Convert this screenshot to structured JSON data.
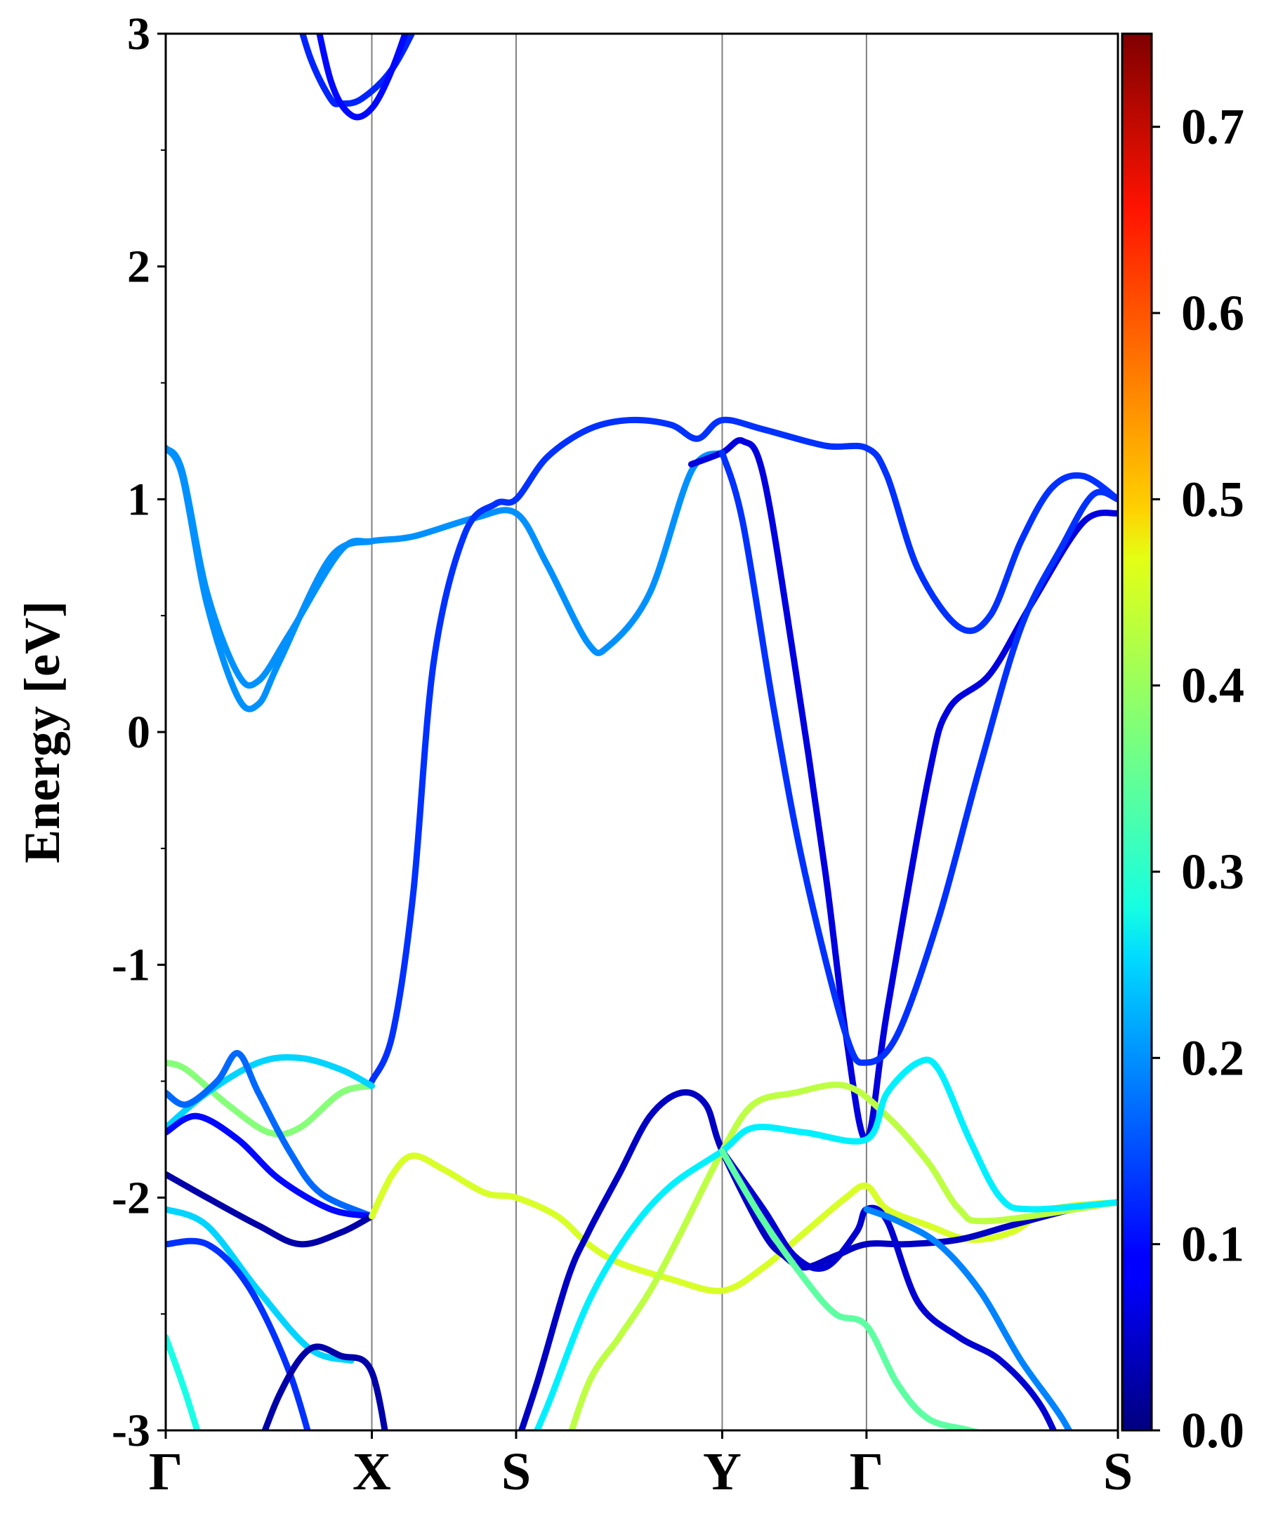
{
  "chart_data": {
    "type": "line",
    "title": "",
    "xlabel": "",
    "ylabel": "Energy [eV]",
    "ylim": [
      -3,
      3
    ],
    "yticks": [
      -3,
      -2,
      -1,
      0,
      1,
      2,
      3
    ],
    "yticks_minor": [
      -2.5,
      -1.5,
      -0.5,
      0.5,
      1.5,
      2.5
    ],
    "kpath": [
      {
        "label": "Γ",
        "x": 0.0
      },
      {
        "label": "X",
        "x": 1.0
      },
      {
        "label": "S",
        "x": 1.7
      },
      {
        "label": "Y",
        "x": 2.7
      },
      {
        "label": "Γ",
        "x": 3.4
      },
      {
        "label": "S",
        "x": 4.62
      }
    ],
    "grid": "vertical lines at high-symmetry points",
    "colorbar": {
      "colormap": "jet",
      "range": [
        0,
        0.75
      ],
      "ticks": [
        "0.0",
        "0.1",
        "0.2",
        "0.3",
        "0.4",
        "0.5",
        "0.6",
        "0.7"
      ]
    },
    "bands": [
      {
        "points": [
          [
            0.6,
            3.2
          ],
          [
            0.7,
            2.9
          ],
          [
            0.8,
            2.72
          ],
          [
            0.85,
            2.7
          ],
          [
            0.95,
            2.72
          ],
          [
            1.1,
            2.85
          ],
          [
            1.25,
            3.1
          ]
        ],
        "weight": 0.12
      },
      {
        "points": [
          [
            0.7,
            3.2
          ],
          [
            0.8,
            2.8
          ],
          [
            0.9,
            2.65
          ],
          [
            1.0,
            2.68
          ],
          [
            1.1,
            2.85
          ],
          [
            1.2,
            3.1
          ]
        ],
        "weight": 0.1
      },
      {
        "points": [
          [
            0.0,
            1.22
          ],
          [
            0.08,
            1.12
          ],
          [
            0.2,
            0.6
          ],
          [
            0.35,
            0.25
          ],
          [
            0.45,
            0.22
          ],
          [
            0.6,
            0.42
          ],
          [
            0.85,
            0.78
          ],
          [
            1.0,
            0.82
          ],
          [
            1.2,
            0.84
          ],
          [
            1.5,
            0.92
          ],
          [
            1.7,
            0.94
          ],
          [
            1.85,
            0.72
          ],
          [
            2.05,
            0.38
          ],
          [
            2.15,
            0.37
          ],
          [
            2.35,
            0.6
          ],
          [
            2.55,
            1.12
          ],
          [
            2.7,
            1.2
          ]
        ],
        "weight": 0.2
      },
      {
        "points": [
          [
            0.0,
            1.22
          ],
          [
            0.08,
            1.1
          ],
          [
            0.2,
            0.55
          ],
          [
            0.35,
            0.15
          ],
          [
            0.45,
            0.12
          ],
          [
            0.55,
            0.3
          ],
          [
            0.8,
            0.75
          ],
          [
            1.0,
            0.82
          ]
        ],
        "weight": 0.2
      },
      {
        "points": [
          [
            1.0,
            -1.5
          ],
          [
            1.1,
            -1.3
          ],
          [
            1.2,
            -0.7
          ],
          [
            1.3,
            0.3
          ],
          [
            1.45,
            0.85
          ],
          [
            1.6,
            0.98
          ],
          [
            1.7,
            1.0
          ],
          [
            1.85,
            1.18
          ],
          [
            2.05,
            1.3
          ],
          [
            2.25,
            1.34
          ],
          [
            2.45,
            1.32
          ],
          [
            2.58,
            1.26
          ],
          [
            2.7,
            1.34
          ],
          [
            2.9,
            1.3
          ],
          [
            3.2,
            1.23
          ],
          [
            3.4,
            1.22
          ],
          [
            3.5,
            1.1
          ],
          [
            3.65,
            0.7
          ],
          [
            3.85,
            0.45
          ],
          [
            4.0,
            0.5
          ],
          [
            4.15,
            0.82
          ],
          [
            4.3,
            1.05
          ],
          [
            4.45,
            1.1
          ],
          [
            4.62,
            1.0
          ]
        ],
        "weight": 0.13
      },
      {
        "points": [
          [
            2.55,
            1.15
          ],
          [
            2.7,
            1.2
          ],
          [
            2.8,
            1.25
          ],
          [
            2.9,
            1.1
          ],
          [
            3.05,
            0.3
          ],
          [
            3.2,
            -0.6
          ],
          [
            3.3,
            -1.3
          ],
          [
            3.4,
            -1.75
          ],
          [
            3.5,
            -1.2
          ],
          [
            3.7,
            -0.2
          ],
          [
            3.8,
            0.1
          ],
          [
            4.0,
            0.25
          ],
          [
            4.2,
            0.55
          ],
          [
            4.45,
            0.9
          ],
          [
            4.62,
            0.94
          ]
        ],
        "weight": 0.07
      },
      {
        "points": [
          [
            2.7,
            1.2
          ],
          [
            2.8,
            0.9
          ],
          [
            2.95,
            0.1
          ],
          [
            3.1,
            -0.6
          ],
          [
            3.3,
            -1.3
          ],
          [
            3.4,
            -1.42
          ],
          [
            3.55,
            -1.3
          ],
          [
            3.75,
            -0.8
          ],
          [
            3.95,
            -0.15
          ],
          [
            4.15,
            0.45
          ],
          [
            4.35,
            0.8
          ],
          [
            4.5,
            1.02
          ],
          [
            4.62,
            1.0
          ]
        ],
        "weight": 0.13
      },
      {
        "points": [
          [
            0.0,
            -1.42
          ],
          [
            0.1,
            -1.45
          ],
          [
            0.3,
            -1.6
          ],
          [
            0.5,
            -1.72
          ],
          [
            0.65,
            -1.7
          ],
          [
            0.85,
            -1.55
          ],
          [
            1.0,
            -1.52
          ]
        ],
        "weight": 0.38
      },
      {
        "points": [
          [
            0.0,
            -1.7
          ],
          [
            0.2,
            -1.55
          ],
          [
            0.45,
            -1.42
          ],
          [
            0.65,
            -1.4
          ],
          [
            0.85,
            -1.45
          ],
          [
            1.0,
            -1.52
          ]
        ],
        "weight": 0.25
      },
      {
        "points": [
          [
            0.0,
            -1.55
          ],
          [
            0.1,
            -1.6
          ],
          [
            0.25,
            -1.5
          ],
          [
            0.35,
            -1.38
          ],
          [
            0.45,
            -1.55
          ],
          [
            0.6,
            -1.8
          ],
          [
            0.75,
            -1.98
          ],
          [
            1.0,
            -2.08
          ]
        ],
        "weight": 0.17
      },
      {
        "points": [
          [
            0.0,
            -1.72
          ],
          [
            0.15,
            -1.65
          ],
          [
            0.35,
            -1.75
          ],
          [
            0.55,
            -1.92
          ],
          [
            0.8,
            -2.05
          ],
          [
            1.0,
            -2.08
          ]
        ],
        "weight": 0.1
      },
      {
        "points": [
          [
            0.0,
            -1.9
          ],
          [
            0.2,
            -2.0
          ],
          [
            0.45,
            -2.12
          ],
          [
            0.65,
            -2.2
          ],
          [
            0.85,
            -2.15
          ],
          [
            1.0,
            -2.08
          ]
        ],
        "weight": 0.03
      },
      {
        "points": [
          [
            1.0,
            -2.08
          ],
          [
            1.1,
            -1.9
          ],
          [
            1.2,
            -1.82
          ],
          [
            1.35,
            -1.88
          ],
          [
            1.55,
            -1.98
          ],
          [
            1.7,
            -2.0
          ],
          [
            1.9,
            -2.08
          ],
          [
            2.05,
            -2.2
          ],
          [
            2.2,
            -2.28
          ],
          [
            2.45,
            -2.35
          ],
          [
            2.7,
            -2.4
          ],
          [
            2.9,
            -2.3
          ],
          [
            3.1,
            -2.15
          ],
          [
            3.3,
            -2.0
          ],
          [
            3.4,
            -1.95
          ],
          [
            3.5,
            -2.05
          ],
          [
            3.7,
            -2.12
          ],
          [
            3.9,
            -2.18
          ],
          [
            4.1,
            -2.15
          ],
          [
            4.3,
            -2.05
          ],
          [
            4.62,
            -2.02
          ]
        ],
        "weight": 0.44
      },
      {
        "points": [
          [
            0.0,
            -2.05
          ],
          [
            0.2,
            -2.12
          ],
          [
            0.45,
            -2.4
          ],
          [
            0.7,
            -2.65
          ],
          [
            0.9,
            -2.7
          ]
        ],
        "weight": 0.25
      },
      {
        "points": [
          [
            0.0,
            -2.2
          ],
          [
            0.2,
            -2.2
          ],
          [
            0.4,
            -2.38
          ],
          [
            0.6,
            -2.75
          ],
          [
            0.75,
            -3.2
          ]
        ],
        "weight": 0.13
      },
      {
        "points": [
          [
            0.4,
            -3.2
          ],
          [
            0.55,
            -2.85
          ],
          [
            0.7,
            -2.65
          ],
          [
            0.85,
            -2.68
          ],
          [
            1.0,
            -2.75
          ],
          [
            1.1,
            -3.2
          ]
        ],
        "weight": 0.03
      },
      {
        "points": [
          [
            0.0,
            -2.6
          ],
          [
            0.1,
            -2.85
          ],
          [
            0.22,
            -3.2
          ]
        ],
        "weight": 0.3
      },
      {
        "points": [
          [
            1.65,
            -3.2
          ],
          [
            1.8,
            -2.8
          ],
          [
            1.95,
            -2.35
          ],
          [
            2.05,
            -2.15
          ],
          [
            2.2,
            -1.9
          ],
          [
            2.35,
            -1.65
          ],
          [
            2.5,
            -1.55
          ],
          [
            2.62,
            -1.6
          ],
          [
            2.7,
            -1.8
          ],
          [
            2.9,
            -2.15
          ],
          [
            3.0,
            -2.25
          ],
          [
            3.1,
            -2.3
          ],
          [
            3.25,
            -2.25
          ],
          [
            3.4,
            -2.2
          ],
          [
            3.6,
            -2.2
          ],
          [
            3.85,
            -2.18
          ],
          [
            4.1,
            -2.12
          ],
          [
            4.4,
            -2.05
          ],
          [
            4.62,
            -2.02
          ]
        ],
        "weight": 0.05
      },
      {
        "points": [
          [
            1.9,
            -3.2
          ],
          [
            2.05,
            -2.8
          ],
          [
            2.2,
            -2.6
          ],
          [
            2.35,
            -2.4
          ],
          [
            2.5,
            -2.15
          ],
          [
            2.7,
            -1.8
          ],
          [
            2.85,
            -1.6
          ],
          [
            3.05,
            -1.55
          ],
          [
            3.3,
            -1.52
          ],
          [
            3.5,
            -1.65
          ],
          [
            3.7,
            -1.85
          ],
          [
            3.85,
            -2.05
          ],
          [
            4.0,
            -2.1
          ],
          [
            4.62,
            -2.02
          ]
        ],
        "weight": 0.42
      },
      {
        "points": [
          [
            1.7,
            -3.2
          ],
          [
            1.85,
            -2.9
          ],
          [
            2.05,
            -2.45
          ],
          [
            2.25,
            -2.15
          ],
          [
            2.45,
            -1.95
          ],
          [
            2.7,
            -1.8
          ],
          [
            2.85,
            -1.7
          ],
          [
            3.1,
            -1.72
          ],
          [
            3.4,
            -1.75
          ],
          [
            3.5,
            -1.55
          ],
          [
            3.65,
            -1.42
          ],
          [
            3.75,
            -1.45
          ],
          [
            3.9,
            -1.75
          ],
          [
            4.05,
            -2.0
          ],
          [
            4.2,
            -2.05
          ],
          [
            4.62,
            -2.02
          ]
        ],
        "weight": 0.27
      },
      {
        "points": [
          [
            2.7,
            -1.8
          ],
          [
            2.9,
            -2.05
          ],
          [
            3.05,
            -2.25
          ],
          [
            3.2,
            -2.3
          ],
          [
            3.35,
            -2.15
          ],
          [
            3.4,
            -2.05
          ],
          [
            3.5,
            -2.1
          ],
          [
            3.65,
            -2.45
          ],
          [
            3.85,
            -2.6
          ],
          [
            4.05,
            -2.7
          ],
          [
            4.25,
            -2.9
          ],
          [
            4.4,
            -3.2
          ]
        ],
        "weight": 0.06
      },
      {
        "points": [
          [
            2.7,
            -1.8
          ],
          [
            2.9,
            -2.1
          ],
          [
            3.1,
            -2.35
          ],
          [
            3.25,
            -2.5
          ],
          [
            3.4,
            -2.55
          ],
          [
            3.55,
            -2.8
          ],
          [
            3.7,
            -2.95
          ],
          [
            3.9,
            -3.0
          ],
          [
            4.1,
            -3.05
          ],
          [
            4.3,
            -3.2
          ]
        ],
        "weight": 0.35
      },
      {
        "points": [
          [
            3.4,
            -2.05
          ],
          [
            3.55,
            -2.1
          ],
          [
            3.75,
            -2.2
          ],
          [
            3.95,
            -2.4
          ],
          [
            4.15,
            -2.7
          ],
          [
            4.35,
            -2.95
          ],
          [
            4.5,
            -3.2
          ]
        ],
        "weight": 0.19
      }
    ]
  }
}
